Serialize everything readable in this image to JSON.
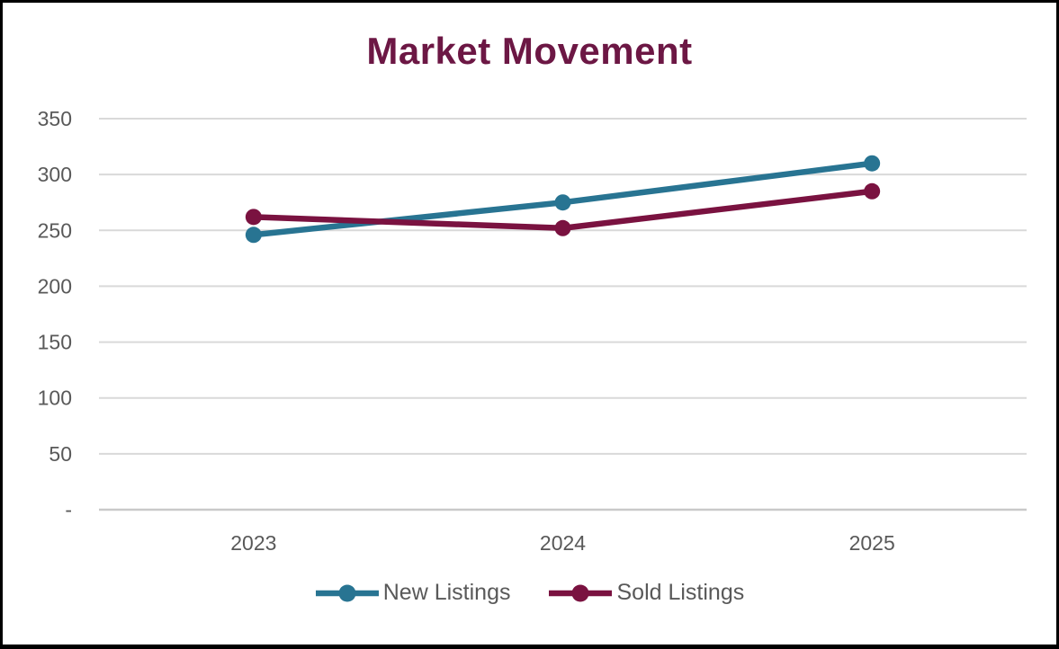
{
  "frame": {
    "background_color": "#ffffff",
    "border_color": "#000000"
  },
  "chart_data": {
    "type": "line",
    "title": "Market Movement",
    "title_color": "#6C1744",
    "categories": [
      "2023",
      "2024",
      "2025"
    ],
    "series": [
      {
        "name": "New Listings",
        "color": "#287492",
        "values": [
          246,
          275,
          310
        ]
      },
      {
        "name": "Sold Listings",
        "color": "#7A1240",
        "values": [
          262,
          252,
          285
        ]
      }
    ],
    "y_ticks": [
      {
        "label": "350",
        "value": 350
      },
      {
        "label": "300",
        "value": 300
      },
      {
        "label": "250",
        "value": 250
      },
      {
        "label": "200",
        "value": 200
      },
      {
        "label": "150",
        "value": 150
      },
      {
        "label": "100",
        "value": 100
      },
      {
        "label": "50",
        "value": 50
      },
      {
        "label": "-",
        "value": 0
      }
    ],
    "ylim": [
      0,
      350
    ],
    "xlabel": "",
    "ylabel": "",
    "grid": true,
    "gridline_color": "#D9D9D9",
    "axis_line_color": "#C9C9C9",
    "label_color": "#595959",
    "legend_position": "bottom"
  }
}
